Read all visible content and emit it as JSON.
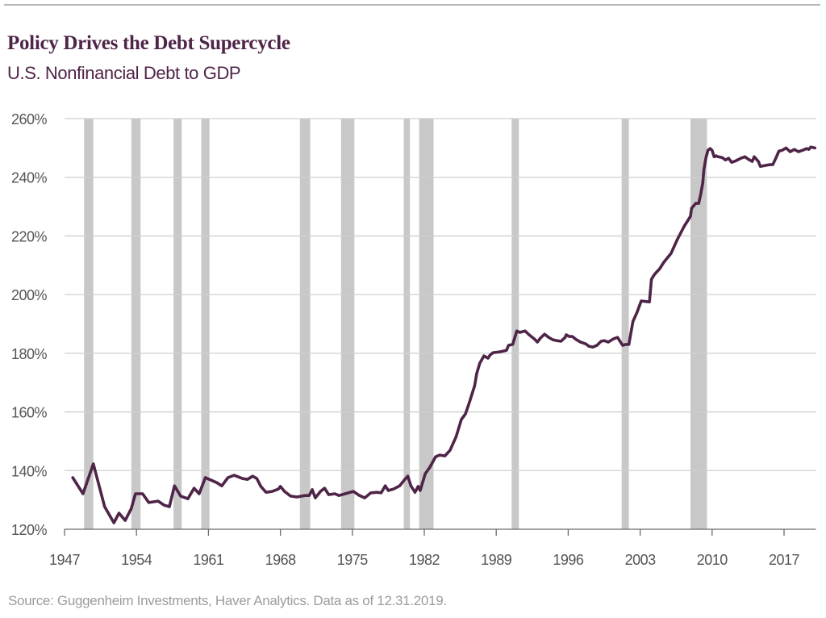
{
  "header": {
    "title": "Policy Drives the Debt Supercycle",
    "subtitle": "U.S. Nonfinancial Debt to GDP"
  },
  "footer": {
    "source": "Source: Guggenheim Investments, Haver Analytics. Data as of 12.31.2019."
  },
  "colors": {
    "line": "#4e2447",
    "recession": "#c8c8c8",
    "grid": "#cfcfcf",
    "axis": "#6b6b6b",
    "title": "#4e2447"
  },
  "chart_data": {
    "type": "line",
    "title": "Policy Drives the Debt Supercycle",
    "subtitle": "U.S. Nonfinancial Debt to GDP",
    "xlabel": "",
    "ylabel": "",
    "xlim": [
      1947,
      2020
    ],
    "ylim": [
      120,
      260
    ],
    "grid": true,
    "legend": "none",
    "x_ticks": [
      1947,
      1954,
      1961,
      1968,
      1975,
      1982,
      1989,
      1996,
      2003,
      2010,
      2017
    ],
    "x_tick_labels": [
      "1947",
      "1954",
      "1961",
      "1968",
      "1975",
      "1982",
      "1989",
      "1996",
      "2003",
      "2010",
      "2017"
    ],
    "y_ticks": [
      120,
      140,
      160,
      180,
      200,
      220,
      240,
      260
    ],
    "y_tick_labels": [
      "120%",
      "140%",
      "160%",
      "180%",
      "200%",
      "220%",
      "240%",
      "260%"
    ],
    "recessions": [
      [
        1948.9,
        1949.8
      ],
      [
        1953.5,
        1954.4
      ],
      [
        1957.6,
        1958.4
      ],
      [
        1960.3,
        1961.1
      ],
      [
        1969.9,
        1970.9
      ],
      [
        1973.9,
        1975.2
      ],
      [
        1980.0,
        1980.6
      ],
      [
        1981.5,
        1982.9
      ],
      [
        1990.5,
        1991.2
      ],
      [
        2001.2,
        2001.9
      ],
      [
        2007.9,
        2009.5
      ]
    ],
    "series": [
      {
        "name": "U.S. Nonfinancial Debt to GDP",
        "x": [
          1947.8,
          1948.8,
          1949.8,
          1950.9,
          1951.8,
          1952.3,
          1952.9,
          1953.5,
          1953.9,
          1954.6,
          1955.2,
          1956.1,
          1956.7,
          1957.2,
          1957.7,
          1958.3,
          1959.0,
          1959.6,
          1960.1,
          1960.7,
          1961.8,
          1962.3,
          1962.9,
          1963.5,
          1964.3,
          1964.8,
          1965.3,
          1965.7,
          1966.1,
          1966.6,
          1967.2,
          1967.8,
          1968.0,
          1968.4,
          1969.0,
          1969.6,
          1970.4,
          1970.8,
          1971.1,
          1971.4,
          1971.9,
          1972.3,
          1972.7,
          1973.3,
          1973.7,
          1974.3,
          1975.1,
          1975.7,
          1976.2,
          1976.8,
          1977.4,
          1977.8,
          1978.2,
          1978.5,
          1979.0,
          1979.6,
          1980.1,
          1980.4,
          1980.7,
          1981.1,
          1981.4,
          1981.6,
          1982.1,
          1982.5,
          1983.1,
          1983.5,
          1984.0,
          1984.5,
          1985.1,
          1985.6,
          1986.0,
          1986.4,
          1986.6,
          1986.9,
          1987.1,
          1987.4,
          1987.8,
          1988.2,
          1988.4,
          1988.7,
          1989.4,
          1990.0,
          1990.2,
          1990.6,
          1991.0,
          1991.3,
          1991.8,
          1992.2,
          1992.7,
          1993.0,
          1993.3,
          1993.7,
          1994.1,
          1994.5,
          1994.9,
          1995.3,
          1995.7,
          1995.8,
          1996.1,
          1996.4,
          1996.8,
          1997.2,
          1997.7,
          1998.0,
          1998.4,
          1998.8,
          1999.2,
          1999.5,
          1999.9,
          2000.4,
          2000.8,
          2001.0,
          2001.3,
          2001.6,
          2001.9,
          2002.3,
          2002.7,
          2003.1,
          2003.9,
          2004.1,
          2004.4,
          2004.9,
          2005.3,
          2006.0,
          2006.6,
          2007.3,
          2007.9,
          2008.0,
          2008.4,
          2008.7,
          2008.9,
          2009.1,
          2009.2,
          2009.4,
          2009.6,
          2009.8,
          2010.0,
          2010.2,
          2010.4,
          2010.6,
          2011.0,
          2011.3,
          2011.6,
          2011.9,
          2012.3,
          2012.8,
          2013.2,
          2013.5,
          2013.9,
          2014.1,
          2014.5,
          2014.7,
          2015.1,
          2015.6,
          2015.9,
          2016.2,
          2016.5,
          2016.8,
          2017.2,
          2017.6,
          2018.0,
          2018.4,
          2018.8,
          2019.2,
          2019.4,
          2019.6,
          2020.0
        ],
        "values": [
          137.6,
          132.1,
          142.3,
          127.7,
          122.2,
          125.5,
          123.0,
          127.1,
          132.1,
          132.1,
          129.1,
          129.6,
          128.2,
          127.7,
          134.8,
          131.3,
          130.4,
          134.0,
          132.1,
          137.6,
          135.9,
          134.8,
          137.6,
          138.4,
          137.3,
          137.0,
          138.1,
          137.3,
          134.6,
          132.6,
          132.9,
          133.7,
          134.6,
          132.9,
          131.3,
          131.0,
          131.5,
          131.5,
          133.5,
          130.7,
          132.9,
          134.0,
          131.8,
          132.1,
          131.5,
          132.1,
          132.9,
          131.5,
          130.7,
          132.4,
          132.6,
          132.4,
          134.8,
          133.2,
          133.7,
          134.8,
          137.0,
          138.1,
          134.8,
          132.6,
          134.6,
          133.2,
          139.0,
          140.9,
          144.7,
          145.3,
          145.0,
          146.9,
          151.6,
          157.4,
          159.3,
          163.4,
          165.6,
          168.9,
          173.1,
          176.6,
          179.1,
          178.3,
          179.4,
          180.2,
          180.5,
          181.0,
          182.7,
          183.0,
          187.6,
          187.1,
          187.6,
          186.3,
          184.9,
          183.8,
          185.2,
          186.5,
          185.4,
          184.6,
          184.3,
          184.1,
          185.4,
          186.3,
          185.7,
          185.7,
          184.6,
          183.8,
          183.2,
          182.4,
          182.1,
          182.7,
          184.1,
          184.3,
          183.8,
          184.9,
          185.4,
          184.3,
          182.7,
          183.0,
          183.0,
          190.9,
          194.0,
          197.8,
          197.5,
          205.2,
          206.9,
          208.8,
          211.0,
          214.0,
          218.7,
          223.4,
          226.7,
          229.4,
          231.1,
          231.1,
          234.4,
          238.2,
          242.6,
          246.7,
          249.2,
          249.8,
          249.2,
          247.0,
          247.3,
          247.0,
          246.7,
          245.9,
          246.5,
          245.1,
          245.6,
          246.5,
          247.0,
          246.2,
          245.4,
          247.0,
          245.4,
          243.7,
          244.0,
          244.3,
          244.3,
          246.5,
          248.9,
          249.2,
          250.0,
          248.7,
          249.5,
          248.7,
          249.2,
          249.8,
          249.5,
          250.3,
          250.0
        ]
      }
    ]
  }
}
